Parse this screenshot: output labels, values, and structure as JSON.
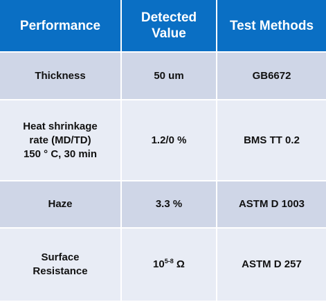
{
  "table": {
    "header": [
      [
        "Performance"
      ],
      [
        "Detected",
        "Value"
      ],
      [
        "Test Methods"
      ]
    ],
    "rows": [
      [
        [
          "Thickness"
        ],
        [
          "50 um"
        ],
        [
          "GB6672"
        ]
      ],
      [
        [
          "Heat shrinkage",
          "rate (MD/TD)",
          "150 ° C, 30 min"
        ],
        [
          "1.2/0 %"
        ],
        [
          "BMS TT 0.2"
        ]
      ],
      [
        [
          "Haze"
        ],
        [
          "3.3 %"
        ],
        [
          "ASTM D 1003"
        ]
      ],
      [
        [
          "Surface",
          "Resistance"
        ],
        {
          "base": "10",
          "exponent": "5-8",
          "unit": "Ω"
        },
        [
          "ASTM D 257"
        ]
      ]
    ]
  }
}
